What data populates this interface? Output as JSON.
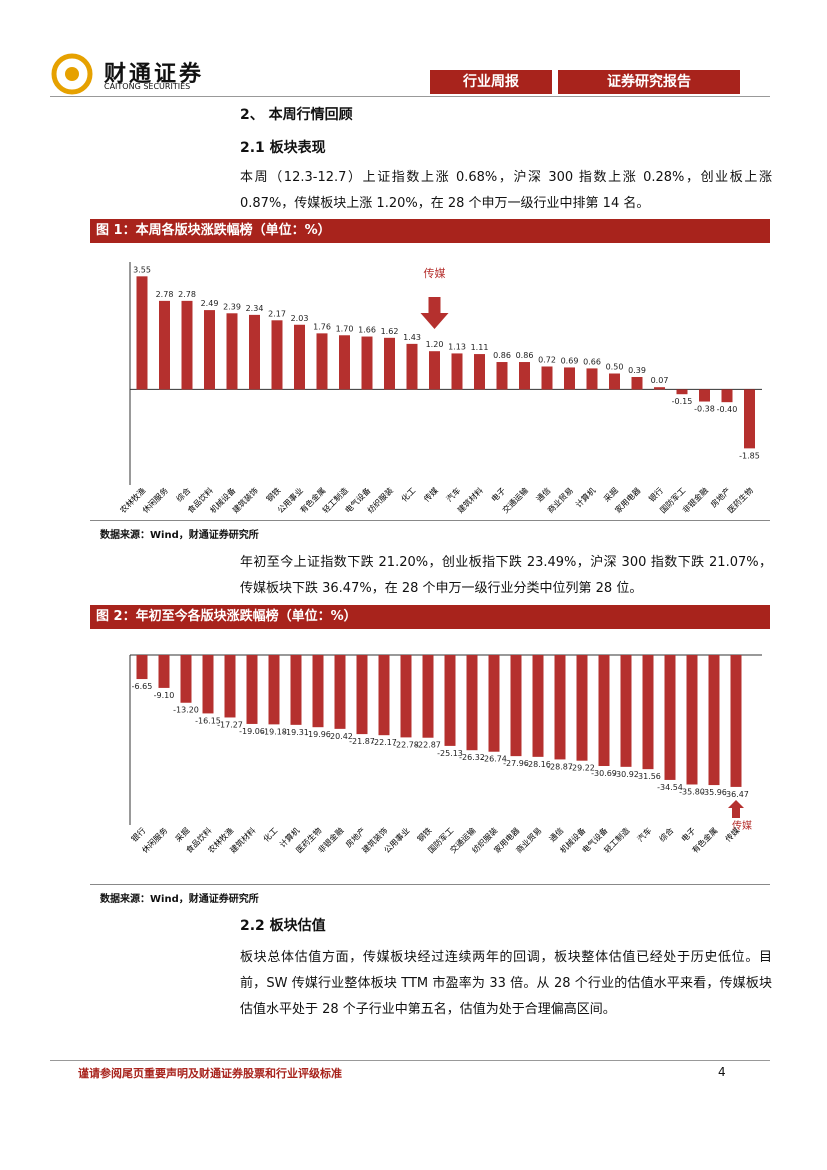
{
  "header": {
    "logo_name": "财通证券",
    "logo_subtitle": "CAITONG SECURITIES",
    "tags": [
      "行业周报",
      "证券研究报告"
    ]
  },
  "section_title": "2、 本周行情回顾",
  "subsection_1": "2.1 板块表现",
  "paragraph_1": "本周（12.3-12.7）上证指数上涨 0.68%，沪深 300 指数上涨 0.28%，创业板上涨 0.87%，传媒板块上涨 1.20%，在 28 个申万一级行业中排第 14 名。",
  "paragraph_2": "年初至今上证指数下跌 21.20%，创业板指下跌 23.49%，沪深 300 指数下跌 21.07%，传媒板块下跌 36.47%，在 28 个申万一级行业分类中位列第 28 位。",
  "subsection_2": "2.2 板块估值",
  "paragraph_3": "板块总体估值方面，传媒板块经过连续两年的回调，板块整体估值已经处于历史低位。目前，SW 传媒行业整体板块 TTM 市盈率为 33 倍。从 28 个行业的估值水平来看，传媒板块估值水平处于 28 个子行业中第五名，估值为处于合理偏高区间。",
  "footer": {
    "disclaimer": "谨请参阅尾页重要声明及财通证券股票和行业评级标准",
    "page": "4"
  },
  "chart_data": [
    {
      "type": "bar",
      "title": "图 1：本周各版块涨跌幅榜（单位：%）",
      "source": "数据来源：Wind，财通证券研究所",
      "categories": [
        "农林牧渔",
        "休闲服务",
        "综合",
        "食品饮料",
        "机械设备",
        "建筑装饰",
        "钢铁",
        "公用事业",
        "有色金属",
        "轻工制造",
        "电气设备",
        "纺织服装",
        "化工",
        "传媒",
        "汽车",
        "建筑材料",
        "电子",
        "交通运输",
        "通信",
        "商业贸易",
        "计算机",
        "采掘",
        "家用电器",
        "银行",
        "国防军工",
        "非银金融",
        "房地产",
        "医药生物"
      ],
      "values": [
        3.55,
        2.78,
        2.78,
        2.49,
        2.39,
        2.34,
        2.17,
        2.03,
        1.76,
        1.7,
        1.66,
        1.62,
        1.43,
        1.2,
        1.13,
        1.11,
        0.86,
        0.86,
        0.72,
        0.69,
        0.66,
        0.5,
        0.39,
        0.07,
        -0.15,
        -0.38,
        -0.4,
        -1.85
      ],
      "value_labels": [
        "3.55",
        "2.78",
        "2.78",
        "2.49",
        "2.39",
        "2.34",
        "2.17",
        "2.03",
        "1.76",
        "1.70",
        "1.66",
        "1.62",
        "1.43",
        "1.20",
        "1.13",
        "1.11",
        "0.86",
        "0.86",
        "0.72",
        "0.69",
        "0.66",
        "0.50",
        "0.39",
        "0.07",
        "-0.15",
        "-0.38",
        "-0.40",
        "-1.85"
      ],
      "color": "#b5302e",
      "ylim": [
        -3,
        4
      ],
      "annotation": "传媒"
    },
    {
      "type": "bar",
      "title": "图 2：年初至今各版块涨跌幅榜（单位：%）",
      "source": "数据来源：Wind，财通证券研究所",
      "categories": [
        "银行",
        "休闲服务",
        "采掘",
        "食品饮料",
        "农林牧渔",
        "建筑材料",
        "化工",
        "计算机",
        "医药生物",
        "非银金融",
        "房地产",
        "建筑装饰",
        "公用事业",
        "钢铁",
        "国防军工",
        "交通运输",
        "纺织服装",
        "家用电器",
        "商业贸易",
        "通信",
        "机械设备",
        "电气设备",
        "轻工制造",
        "汽车",
        "综合",
        "电子",
        "有色金属",
        "传媒"
      ],
      "values": [
        -6.65,
        -9.1,
        -13.2,
        -16.15,
        -17.27,
        -19.06,
        -19.18,
        -19.31,
        -19.96,
        -20.42,
        -21.87,
        -22.17,
        -22.78,
        -22.87,
        -25.13,
        -26.32,
        -26.74,
        -27.96,
        -28.16,
        -28.87,
        -29.22,
        -30.69,
        -30.92,
        -31.56,
        -34.54,
        -35.8,
        -35.96,
        -36.47
      ],
      "value_labels": [
        "-6.65",
        "-9.10",
        "-13.20",
        "-16.15",
        "-17.27",
        "-19.06",
        "-19.18",
        "-19.31",
        "-19.96",
        "-20.42",
        "-21.87",
        "-22.17",
        "-22.78",
        "-22.87",
        "-25.13",
        "-26.32",
        "-26.74",
        "-27.96",
        "-28.16",
        "-28.87",
        "-29.22",
        "-30.69",
        "-30.92",
        "-31.56",
        "-34.54",
        "-35.80",
        "-35.96",
        "-36.47"
      ],
      "color": "#b5302e",
      "ylim": [
        -47,
        0
      ],
      "annotation": "传媒"
    }
  ]
}
